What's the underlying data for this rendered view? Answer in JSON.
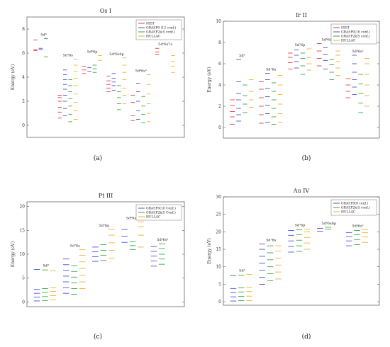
{
  "chart_data": [
    {
      "type": "scatter",
      "panel": "(a)",
      "title": "Os I",
      "ylabel": "Energy (eV)",
      "ylim": [
        -1,
        9
      ],
      "yticks": [
        0,
        2,
        4,
        6,
        8
      ],
      "legend": [
        "NIST",
        "GRASP0 (12 conf.)",
        "GRASP2k(5 conf.)",
        "HULLAC"
      ],
      "legend_position": "top-right",
      "groups": [
        {
          "label": "5d⁸",
          "levels": [
            [
              6.2,
              6.3,
              7.1
            ],
            [
              6.3,
              6.4
            ],
            [
              5.7,
              7.2
            ],
            []
          ]
        },
        {
          "label": "5d⁷6s",
          "levels": [
            [
              0.6,
              1.1,
              1.5,
              2.0,
              2.3,
              2.5
            ],
            [
              0.8,
              1.4,
              2.0,
              2.5,
              3.0,
              3.4,
              3.8,
              4.2,
              4.6
            ],
            [
              0.3,
              0.9,
              1.6,
              2.2,
              2.8,
              3.3,
              3.8
            ],
            [
              0.5,
              1.2,
              1.9,
              2.6,
              3.3,
              3.9,
              4.5,
              5.0,
              5.5
            ]
          ]
        },
        {
          "label": "5d⁶6p",
          "levels": [
            [
              4.3,
              4.6,
              4.9
            ],
            [
              4.5,
              4.8
            ],
            [
              4.4,
              4.7,
              5.0
            ],
            [
              5.4,
              5.8
            ]
          ]
        },
        {
          "label": "5d⁶6s6p",
          "levels": [
            [
              2.8,
              3.1,
              3.4,
              3.7,
              4.1
            ],
            [
              2.9,
              3.3,
              3.6,
              3.9,
              4.3
            ],
            [
              1.3,
              1.8,
              2.3,
              2.8,
              3.3
            ],
            [
              1.8,
              2.5,
              3.1,
              3.8,
              4.4,
              5.0,
              5.6
            ]
          ]
        },
        {
          "label": "5d⁶6s²",
          "levels": [
            [
              0.4,
              0.8,
              1.9,
              2.5
            ],
            [
              0.5,
              1.2,
              2.0,
              2.8,
              3.5
            ],
            [
              0.2,
              0.9,
              1.6,
              2.4
            ],
            [
              0.3,
              1.0,
              1.8,
              2.6,
              3.4,
              4.2
            ]
          ]
        },
        {
          "label": "5d⁶6s7s",
          "levels": [
            [
              5.9,
              6.1,
              6.4
            ],
            [],
            [],
            [
              4.4,
              4.9,
              5.3,
              5.8
            ]
          ]
        }
      ]
    },
    {
      "type": "scatter",
      "panel": "(b)",
      "title": "Ir II",
      "ylabel": "Energy (eV)",
      "ylim": [
        -1,
        10
      ],
      "yticks": [
        0,
        2,
        4,
        6,
        8,
        10
      ],
      "legend": [
        "NIST",
        "GRASP0(16 conf.)",
        "GRASP2k(5 conf.)",
        "HULLAC"
      ],
      "legend_position": "top-right",
      "groups": [
        {
          "label": "5d⁸",
          "levels": [
            [
              0.3,
              1.0,
              1.5,
              2.1,
              2.6
            ],
            [
              0.6,
              1.2,
              1.8,
              2.6,
              3.2,
              4.3,
              6.4
            ],
            [
              1.4,
              2.2,
              3.0,
              4.0
            ],
            [
              1.9,
              2.6,
              3.4,
              4.5
            ]
          ]
        },
        {
          "label": "5d⁷6s",
          "levels": [
            [
              0.4,
              1.2,
              2.0,
              2.8,
              3.6,
              4.3
            ],
            [
              0.5,
              1.3,
              2.1,
              2.9,
              3.7,
              4.5,
              5.1
            ],
            [
              0.3,
              1.0,
              1.8,
              2.6,
              3.4,
              4.2
            ],
            [
              0.5,
              1.3,
              2.2,
              3.1,
              4.0,
              4.9
            ]
          ]
        },
        {
          "label": "5d⁷6p",
          "levels": [
            [
              5.5,
              6.1,
              6.6,
              7.0
            ],
            [
              5.6,
              6.2,
              6.8,
              7.3
            ],
            [
              5.0,
              5.8,
              6.5,
              7.0
            ],
            [
              5.4,
              6.0,
              6.6,
              7.4
            ]
          ]
        },
        {
          "label": "5d⁶6s6p",
          "levels": [
            [
              5.8,
              6.5,
              7.2,
              7.9
            ],
            [
              5.5,
              6.3,
              6.9,
              7.5
            ],
            [
              4.5,
              5.2,
              5.9,
              6.4
            ],
            [
              4.9,
              5.6,
              6.2,
              6.8,
              7.2
            ]
          ]
        },
        {
          "label": "5d⁶6s²",
          "levels": [
            [
              2.8,
              3.4,
              4.0,
              4.6
            ],
            [
              3.1,
              3.8,
              4.5,
              5.2,
              6.0,
              6.8
            ],
            [
              1.4,
              2.3,
              3.2,
              4.1,
              5.0
            ],
            [
              2.0,
              3.0,
              4.0,
              5.0,
              6.0,
              6.5
            ]
          ]
        }
      ]
    },
    {
      "type": "scatter",
      "panel": "(c)",
      "title": "Pt III",
      "ylabel": "Energy (eV)",
      "ylim": [
        -1,
        21
      ],
      "yticks": [
        0,
        5,
        10,
        15,
        20
      ],
      "legend": [
        "GRASP0(10 Conf.)",
        "GRASP2k(5 Conf.)",
        "HULLAC"
      ],
      "legend_position": "top-right",
      "groups": [
        {
          "label": "5d⁸",
          "levels": [
            [
              0.2,
              1.0,
              1.8,
              2.6,
              6.8
            ],
            [
              0.3,
              1.1,
              2.0,
              2.8,
              6.7
            ],
            [
              0.4,
              1.3,
              2.2,
              3.0,
              6.5
            ]
          ]
        },
        {
          "label": "5d⁷6s",
          "levels": [
            [
              1.8,
              3.0,
              4.2,
              5.4,
              6.6,
              7.8,
              9.0
            ],
            [
              1.6,
              2.8,
              4.0,
              5.2,
              6.4,
              7.6
            ],
            [
              2.8,
              4.2,
              5.6,
              7.0,
              8.4,
              9.8,
              11.0
            ]
          ]
        },
        {
          "label": "5d⁷6p",
          "levels": [
            [
              8.5,
              9.5,
              10.5,
              11.5
            ],
            [
              8.7,
              9.8,
              10.8,
              12.0
            ],
            [
              9.2,
              10.8,
              12.4,
              14.0,
              15.2
            ]
          ]
        },
        {
          "label": "5d⁶6s6p",
          "levels": [
            [
              12.5,
              13.8,
              15.2
            ],
            [
              11.0,
              11.8,
              12.6
            ],
            [
              11.5,
              14.0,
              15.8,
              16.8
            ]
          ]
        },
        {
          "label": "5d⁶6s²",
          "levels": [
            [
              7.5,
              8.6,
              9.6,
              10.6,
              11.6
            ],
            [
              7.9,
              9.0,
              10.0,
              11.2,
              12.2
            ],
            []
          ]
        }
      ]
    },
    {
      "type": "scatter",
      "panel": "(d)",
      "title": "Au IV",
      "ylabel": "Energy (eV)",
      "ylim": [
        -1,
        30
      ],
      "yticks": [
        0,
        5,
        10,
        15,
        20,
        25,
        30
      ],
      "legend": [
        "GRASP0(8 conf.)",
        "GRASP2k(5 conf.)",
        "HULLAC"
      ],
      "legend_position": "top-right",
      "groups": [
        {
          "label": "5d⁸",
          "levels": [
            [
              0.2,
              1.4,
              2.6,
              3.8,
              7.5
            ],
            [
              0.3,
              1.5,
              2.8,
              4.0,
              7.6
            ],
            [
              0.3,
              1.6,
              2.9,
              4.1,
              7.8
            ]
          ]
        },
        {
          "label": "5d⁷6s",
          "levels": [
            [
              5.0,
              7.0,
              9.0,
              11.0,
              13.0,
              15.0,
              16.5
            ],
            [
              6.0,
              8.0,
              10.0,
              12.0,
              14.0,
              16.0
            ],
            [
              6.5,
              8.5,
              10.5,
              12.5,
              14.5,
              16.0
            ]
          ]
        },
        {
          "label": "5d⁷6p",
          "levels": [
            [
              14.2,
              15.8,
              17.4,
              19.0,
              20.4
            ],
            [
              14.4,
              16.0,
              17.6,
              19.2,
              20.6
            ],
            [
              15.0,
              16.8,
              18.4,
              20.0,
              20.8
            ]
          ]
        },
        {
          "label": "5d⁶6s6p",
          "levels": [
            [
              20.2,
              21.0
            ],
            [
              20.8,
              21.3
            ],
            []
          ]
        },
        {
          "label": "5d⁶6s²",
          "levels": [
            [
              16.0,
              17.4,
              18.6,
              19.8
            ],
            [
              16.3,
              17.8,
              19.2,
              20.4
            ],
            [
              17.0,
              18.6,
              19.8,
              20.6
            ]
          ]
        }
      ]
    }
  ],
  "colors": {
    "series_4": [
      "#e8232b",
      "#3a3ad6",
      "#1e9e2e",
      "#f2a41c"
    ],
    "series_3": [
      "#3a3ad6",
      "#1e9e2e",
      "#f2a41c"
    ]
  }
}
